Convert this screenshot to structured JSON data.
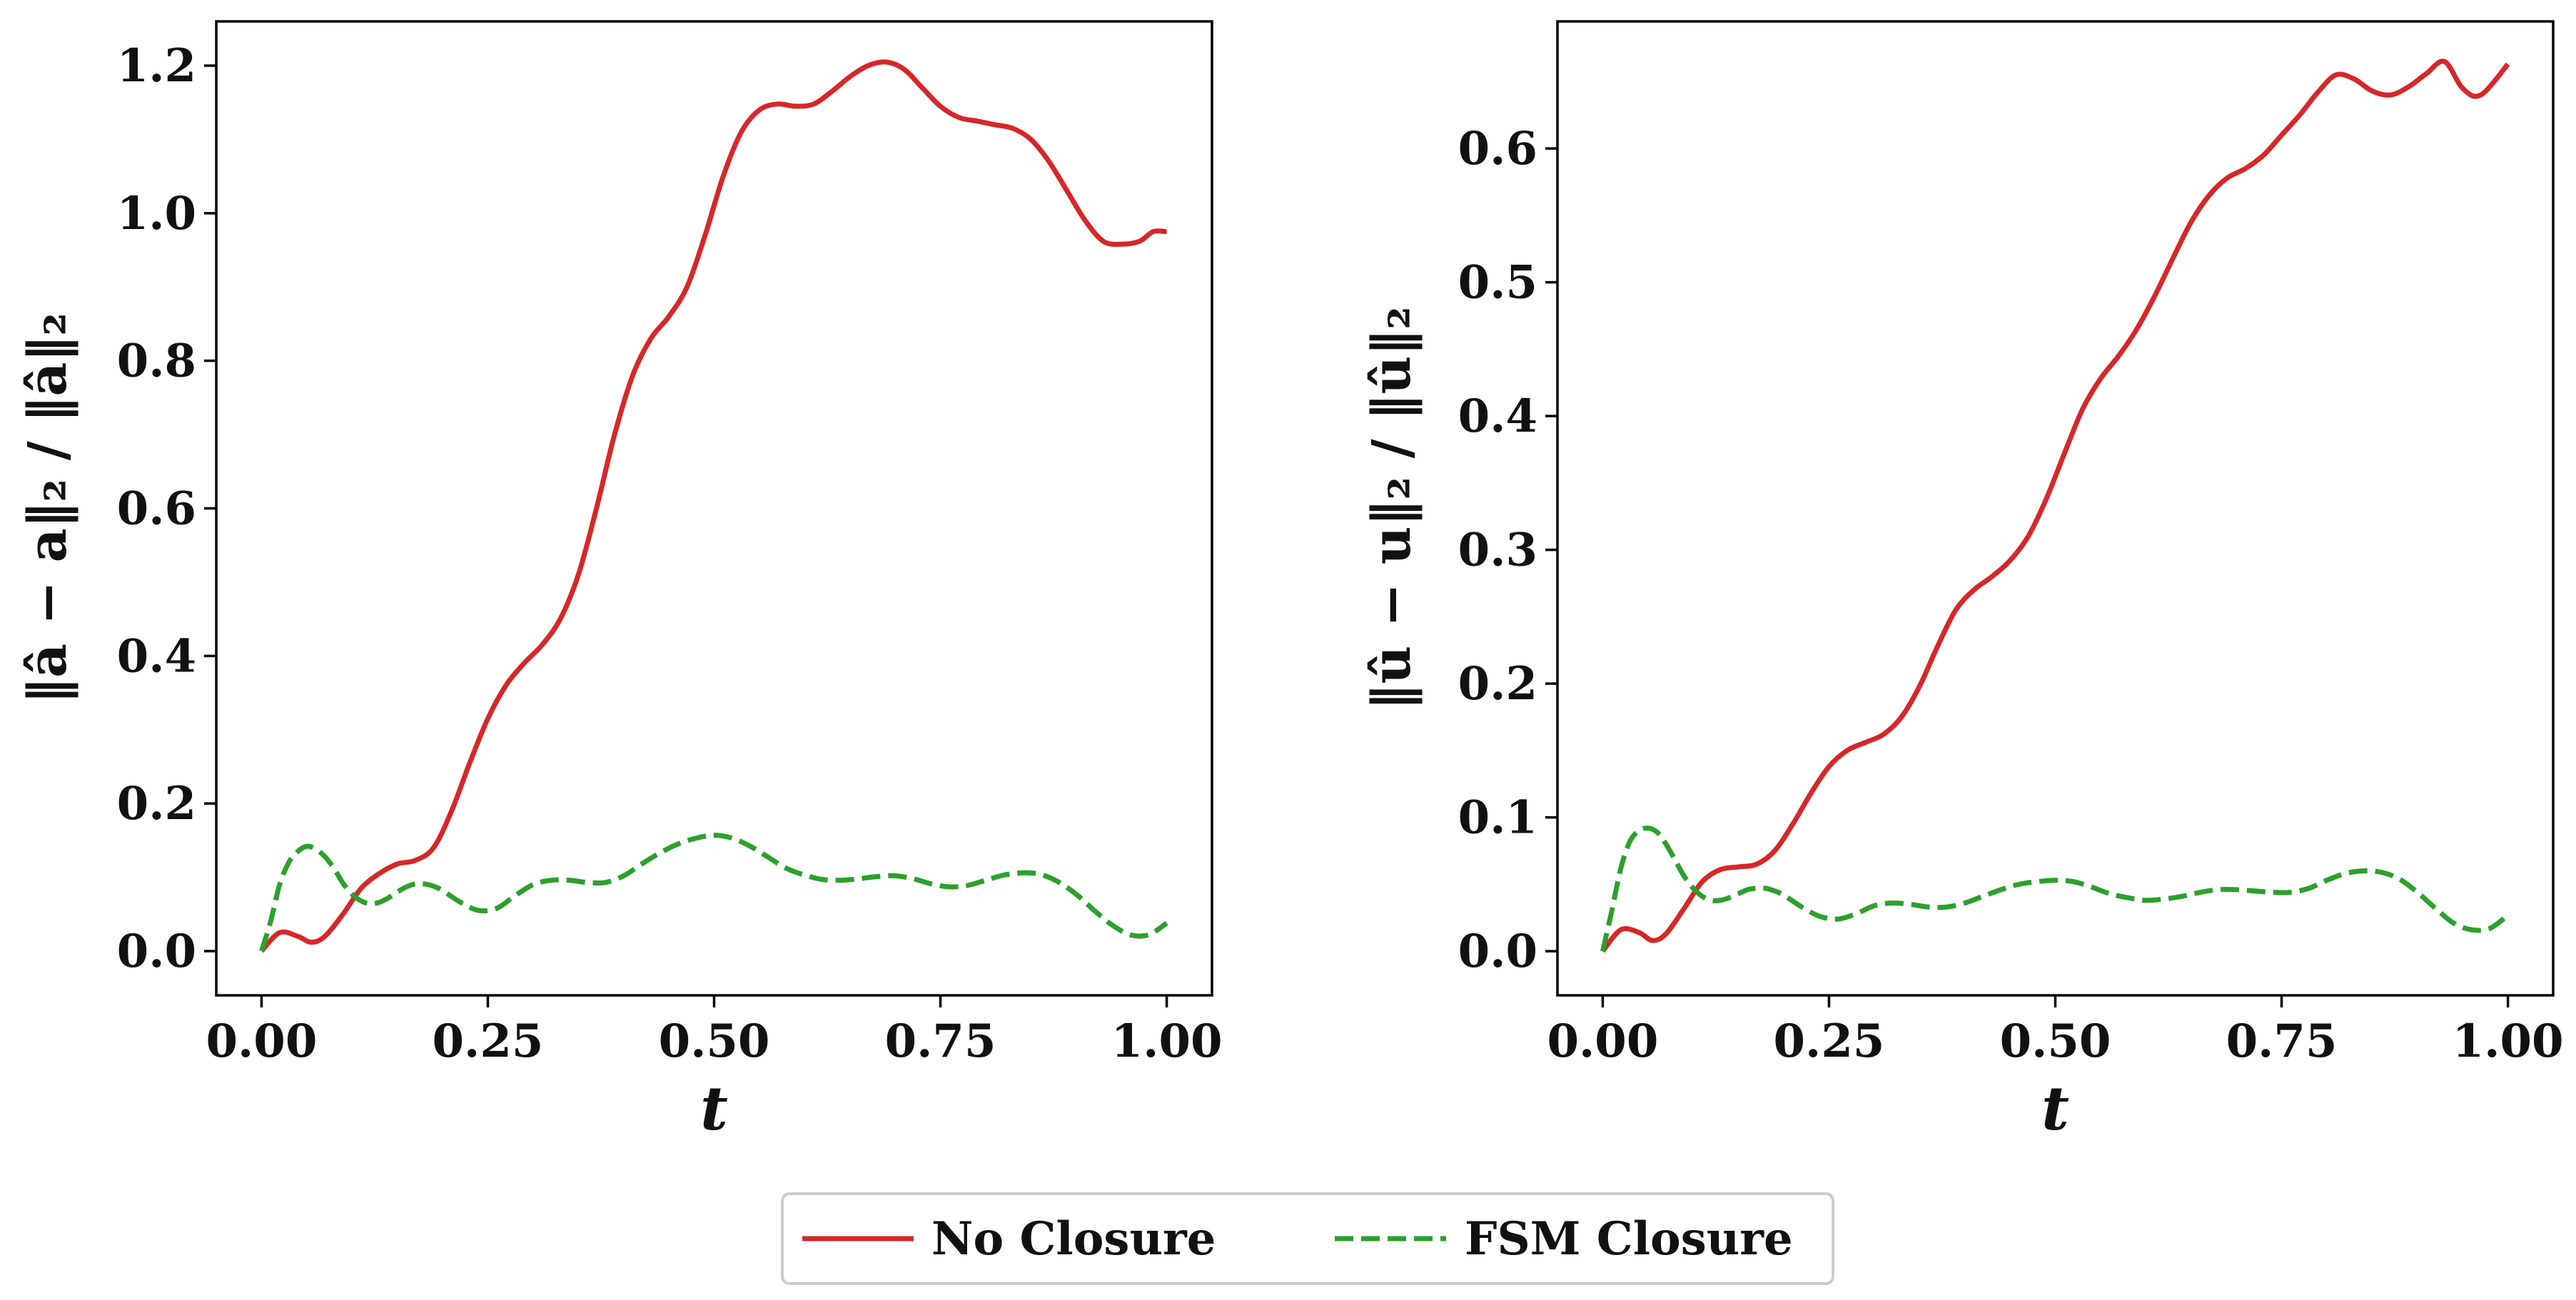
{
  "chart_data": [
    {
      "type": "line",
      "xlabel": "t",
      "ylabel": "‖â − a‖₂ / ‖â‖₂",
      "xlim": [
        -0.05,
        1.05
      ],
      "ylim": [
        -0.06,
        1.26
      ],
      "xticks": [
        "0.00",
        "0.25",
        "0.50",
        "0.75",
        "1.00"
      ],
      "xtick_values": [
        0,
        0.25,
        0.5,
        0.75,
        1.0
      ],
      "yticks": [
        "0.0",
        "0.2",
        "0.4",
        "0.6",
        "0.8",
        "1.0",
        "1.2"
      ],
      "ytick_values": [
        0,
        0.2,
        0.4,
        0.6,
        0.8,
        1.0,
        1.2
      ],
      "grid": false,
      "series": [
        {
          "name": "No Closure",
          "color": "#d62728",
          "style": "solid",
          "x": [
            0,
            0.02,
            0.04,
            0.055,
            0.07,
            0.09,
            0.11,
            0.13,
            0.15,
            0.17,
            0.19,
            0.21,
            0.23,
            0.25,
            0.27,
            0.29,
            0.31,
            0.33,
            0.35,
            0.37,
            0.39,
            0.41,
            0.43,
            0.45,
            0.47,
            0.49,
            0.51,
            0.53,
            0.55,
            0.57,
            0.59,
            0.61,
            0.63,
            0.65,
            0.67,
            0.69,
            0.71,
            0.73,
            0.75,
            0.77,
            0.79,
            0.81,
            0.83,
            0.85,
            0.87,
            0.89,
            0.91,
            0.93,
            0.95,
            0.97,
            0.985,
            1.0
          ],
          "y": [
            0.0,
            0.025,
            0.02,
            0.012,
            0.02,
            0.05,
            0.085,
            0.105,
            0.118,
            0.123,
            0.14,
            0.19,
            0.255,
            0.315,
            0.36,
            0.39,
            0.415,
            0.45,
            0.51,
            0.6,
            0.7,
            0.78,
            0.83,
            0.86,
            0.9,
            0.97,
            1.05,
            1.11,
            1.14,
            1.148,
            1.145,
            1.148,
            1.165,
            1.185,
            1.2,
            1.205,
            1.195,
            1.17,
            1.145,
            1.13,
            1.125,
            1.12,
            1.115,
            1.1,
            1.07,
            1.03,
            0.99,
            0.962,
            0.958,
            0.962,
            0.975,
            0.975
          ]
        },
        {
          "name": "FSM Closure",
          "color": "#2ca02c",
          "style": "dashed",
          "x": [
            0,
            0.01,
            0.02,
            0.03,
            0.04,
            0.05,
            0.06,
            0.07,
            0.08,
            0.09,
            0.1,
            0.11,
            0.12,
            0.13,
            0.14,
            0.15,
            0.16,
            0.17,
            0.18,
            0.19,
            0.2,
            0.22,
            0.24,
            0.26,
            0.28,
            0.3,
            0.32,
            0.34,
            0.36,
            0.38,
            0.4,
            0.42,
            0.44,
            0.46,
            0.48,
            0.5,
            0.52,
            0.54,
            0.56,
            0.58,
            0.6,
            0.62,
            0.64,
            0.66,
            0.68,
            0.7,
            0.72,
            0.74,
            0.76,
            0.78,
            0.8,
            0.82,
            0.84,
            0.86,
            0.88,
            0.9,
            0.92,
            0.94,
            0.96,
            0.98,
            1.0
          ],
          "y": [
            0.0,
            0.04,
            0.09,
            0.12,
            0.135,
            0.142,
            0.138,
            0.128,
            0.112,
            0.092,
            0.077,
            0.068,
            0.064,
            0.066,
            0.072,
            0.08,
            0.087,
            0.091,
            0.091,
            0.088,
            0.082,
            0.066,
            0.055,
            0.058,
            0.075,
            0.09,
            0.096,
            0.096,
            0.093,
            0.093,
            0.102,
            0.118,
            0.133,
            0.145,
            0.153,
            0.157,
            0.153,
            0.142,
            0.127,
            0.112,
            0.103,
            0.097,
            0.096,
            0.098,
            0.101,
            0.102,
            0.098,
            0.091,
            0.087,
            0.089,
            0.096,
            0.103,
            0.106,
            0.104,
            0.094,
            0.077,
            0.055,
            0.035,
            0.022,
            0.022,
            0.038
          ]
        }
      ]
    },
    {
      "type": "line",
      "xlabel": "t",
      "ylabel": "‖û − u‖₂ / ‖û‖₂",
      "xlim": [
        -0.05,
        1.05
      ],
      "ylim": [
        -0.033,
        0.695
      ],
      "xticks": [
        "0.00",
        "0.25",
        "0.50",
        "0.75",
        "1.00"
      ],
      "xtick_values": [
        0,
        0.25,
        0.5,
        0.75,
        1.0
      ],
      "yticks": [
        "0.0",
        "0.1",
        "0.2",
        "0.3",
        "0.4",
        "0.5",
        "0.6"
      ],
      "ytick_values": [
        0,
        0.1,
        0.2,
        0.3,
        0.4,
        0.5,
        0.6
      ],
      "grid": false,
      "series": [
        {
          "name": "No Closure",
          "color": "#d62728",
          "style": "solid",
          "x": [
            0,
            0.02,
            0.04,
            0.055,
            0.07,
            0.09,
            0.11,
            0.13,
            0.15,
            0.17,
            0.19,
            0.21,
            0.23,
            0.25,
            0.27,
            0.29,
            0.31,
            0.33,
            0.35,
            0.37,
            0.39,
            0.41,
            0.43,
            0.45,
            0.47,
            0.49,
            0.51,
            0.53,
            0.55,
            0.57,
            0.59,
            0.61,
            0.63,
            0.65,
            0.67,
            0.69,
            0.71,
            0.73,
            0.75,
            0.77,
            0.79,
            0.81,
            0.83,
            0.85,
            0.87,
            0.89,
            0.91,
            0.93,
            0.95,
            0.97,
            1.0
          ],
          "y": [
            0.0,
            0.016,
            0.014,
            0.008,
            0.013,
            0.032,
            0.052,
            0.061,
            0.063,
            0.065,
            0.075,
            0.095,
            0.118,
            0.138,
            0.15,
            0.156,
            0.162,
            0.175,
            0.198,
            0.228,
            0.255,
            0.27,
            0.28,
            0.292,
            0.31,
            0.338,
            0.372,
            0.405,
            0.428,
            0.445,
            0.465,
            0.49,
            0.518,
            0.545,
            0.565,
            0.578,
            0.585,
            0.595,
            0.61,
            0.625,
            0.642,
            0.655,
            0.652,
            0.643,
            0.64,
            0.646,
            0.656,
            0.665,
            0.645,
            0.64,
            0.663
          ]
        },
        {
          "name": "FSM Closure",
          "color": "#2ca02c",
          "style": "dashed",
          "x": [
            0,
            0.01,
            0.02,
            0.03,
            0.04,
            0.05,
            0.06,
            0.07,
            0.08,
            0.09,
            0.1,
            0.11,
            0.12,
            0.13,
            0.14,
            0.15,
            0.16,
            0.17,
            0.18,
            0.19,
            0.2,
            0.22,
            0.24,
            0.26,
            0.28,
            0.3,
            0.32,
            0.34,
            0.36,
            0.38,
            0.4,
            0.42,
            0.44,
            0.46,
            0.48,
            0.5,
            0.52,
            0.54,
            0.56,
            0.58,
            0.6,
            0.62,
            0.64,
            0.66,
            0.68,
            0.7,
            0.72,
            0.74,
            0.76,
            0.78,
            0.8,
            0.82,
            0.84,
            0.86,
            0.88,
            0.9,
            0.92,
            0.94,
            0.96,
            0.98,
            1.0
          ],
          "y": [
            0.0,
            0.03,
            0.062,
            0.082,
            0.09,
            0.092,
            0.089,
            0.08,
            0.068,
            0.056,
            0.047,
            0.041,
            0.038,
            0.038,
            0.04,
            0.043,
            0.046,
            0.047,
            0.047,
            0.045,
            0.042,
            0.033,
            0.026,
            0.024,
            0.028,
            0.034,
            0.036,
            0.035,
            0.033,
            0.033,
            0.036,
            0.041,
            0.046,
            0.05,
            0.052,
            0.053,
            0.052,
            0.048,
            0.043,
            0.04,
            0.038,
            0.039,
            0.041,
            0.044,
            0.046,
            0.046,
            0.045,
            0.044,
            0.044,
            0.047,
            0.053,
            0.058,
            0.06,
            0.059,
            0.054,
            0.044,
            0.032,
            0.021,
            0.016,
            0.017,
            0.027
          ]
        }
      ]
    }
  ],
  "legend": {
    "placement": "bottom-center",
    "entries": [
      {
        "label": "No Closure",
        "color": "#d62728",
        "style": "solid"
      },
      {
        "label": "FSM Closure",
        "color": "#2ca02c",
        "style": "dashed"
      }
    ]
  }
}
